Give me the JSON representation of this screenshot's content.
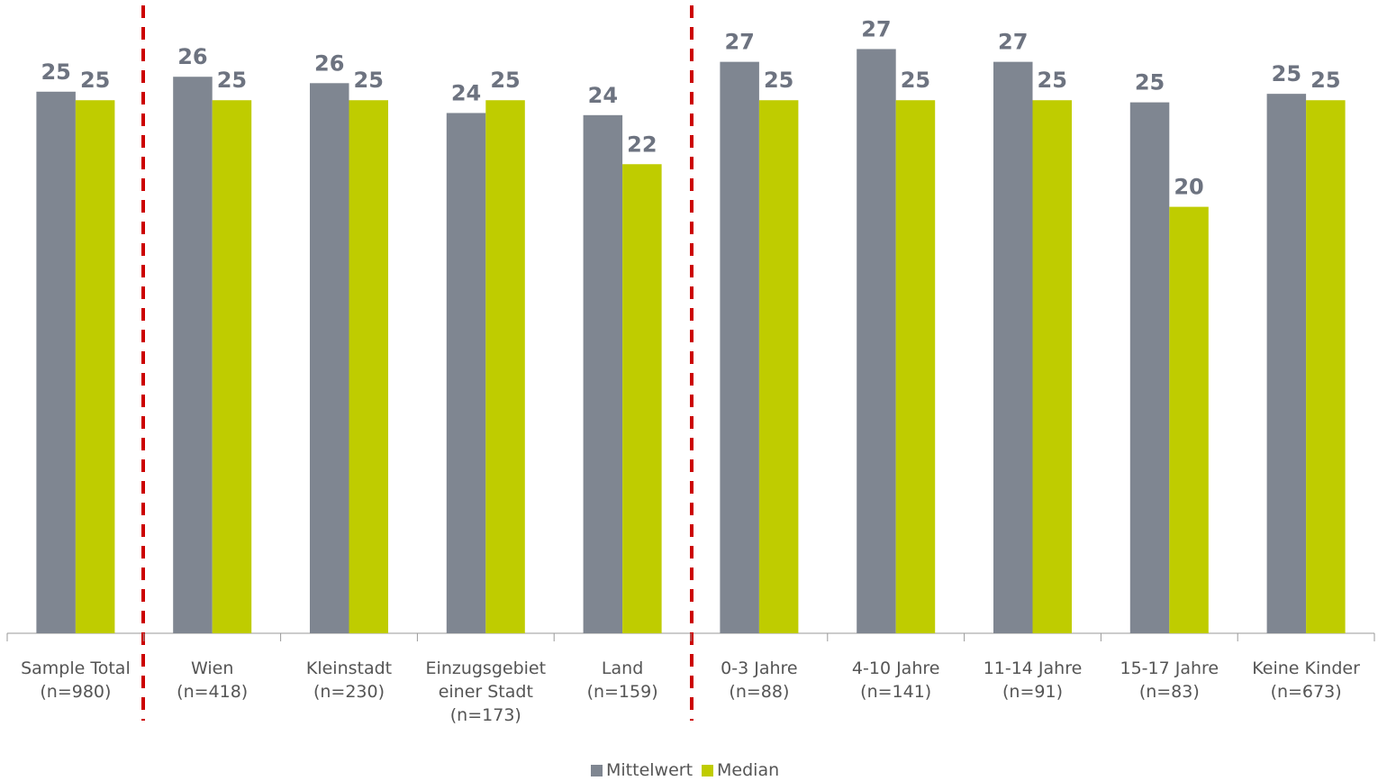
{
  "chart_data": {
    "type": "bar",
    "categories": [
      "Sample Total\n(n=980)",
      "Wien\n(n=418)",
      "Kleinstadt\n(n=230)",
      "Einzugsgebiet\neiner Stadt\n(n=173)",
      "Land\n(n=159)",
      "0-3 Jahre\n(n=88)",
      "4-10 Jahre\n(n=141)",
      "11-14 Jahre\n(n=91)",
      "15-17 Jahre\n(n=83)",
      "Keine Kinder\n(n=673)"
    ],
    "series": [
      {
        "name": "Mittelwert",
        "color": "#7f8691",
        "values": [
          25.4,
          26.1,
          25.8,
          24.4,
          24.3,
          26.8,
          27.4,
          26.8,
          24.9,
          25.3
        ],
        "value_labels": [
          "25",
          "26",
          "26",
          "24",
          "24",
          "27",
          "27",
          "27",
          "25",
          "25"
        ]
      },
      {
        "name": "Median",
        "color": "#bfcc00",
        "values": [
          25,
          25,
          25,
          25,
          22,
          25,
          25,
          25,
          20,
          25
        ]
      }
    ],
    "ylim": [
      0,
      29.7
    ],
    "legend": "bottom"
  }
}
